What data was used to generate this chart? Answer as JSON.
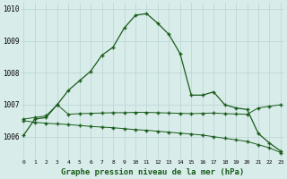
{
  "hours": [
    0,
    1,
    2,
    3,
    4,
    5,
    6,
    7,
    8,
    9,
    10,
    11,
    12,
    13,
    14,
    15,
    16,
    17,
    18,
    19,
    20,
    21,
    22,
    23
  ],
  "pressure_main": [
    1006.05,
    1006.55,
    1006.6,
    1007.0,
    1007.45,
    1007.75,
    1008.05,
    1008.55,
    1008.8,
    1009.4,
    1009.8,
    1009.85,
    1009.55,
    1009.2,
    1008.6,
    1007.3,
    1007.3,
    1007.4,
    1007.0,
    1006.9,
    1006.85,
    1006.1,
    1005.8,
    1005.55
  ],
  "pressure_flat": [
    1006.55,
    1006.6,
    1006.65,
    1007.0,
    1006.7,
    1006.72,
    1006.73,
    1006.74,
    1006.75,
    1006.75,
    1006.76,
    1006.76,
    1006.75,
    1006.74,
    1006.73,
    1006.72,
    1006.73,
    1006.74,
    1006.72,
    1006.71,
    1006.7,
    1006.9,
    1006.95,
    1007.0
  ],
  "pressure_diag": [
    1006.5,
    1006.45,
    1006.42,
    1006.4,
    1006.38,
    1006.35,
    1006.32,
    1006.3,
    1006.28,
    1006.25,
    1006.22,
    1006.2,
    1006.17,
    1006.14,
    1006.11,
    1006.08,
    1006.05,
    1006.0,
    1005.95,
    1005.9,
    1005.85,
    1005.75,
    1005.65,
    1005.5
  ],
  "ylim": [
    1005.3,
    1010.2
  ],
  "yticks": [
    1006,
    1007,
    1008,
    1009,
    1010
  ],
  "bg_color": "#d8ecea",
  "grid_color": "#b8d4d2",
  "line_color": "#1a5c1a",
  "xlabel": "Graphe pression niveau de la mer (hPa)",
  "xlabel_color": "#1a5c1a"
}
